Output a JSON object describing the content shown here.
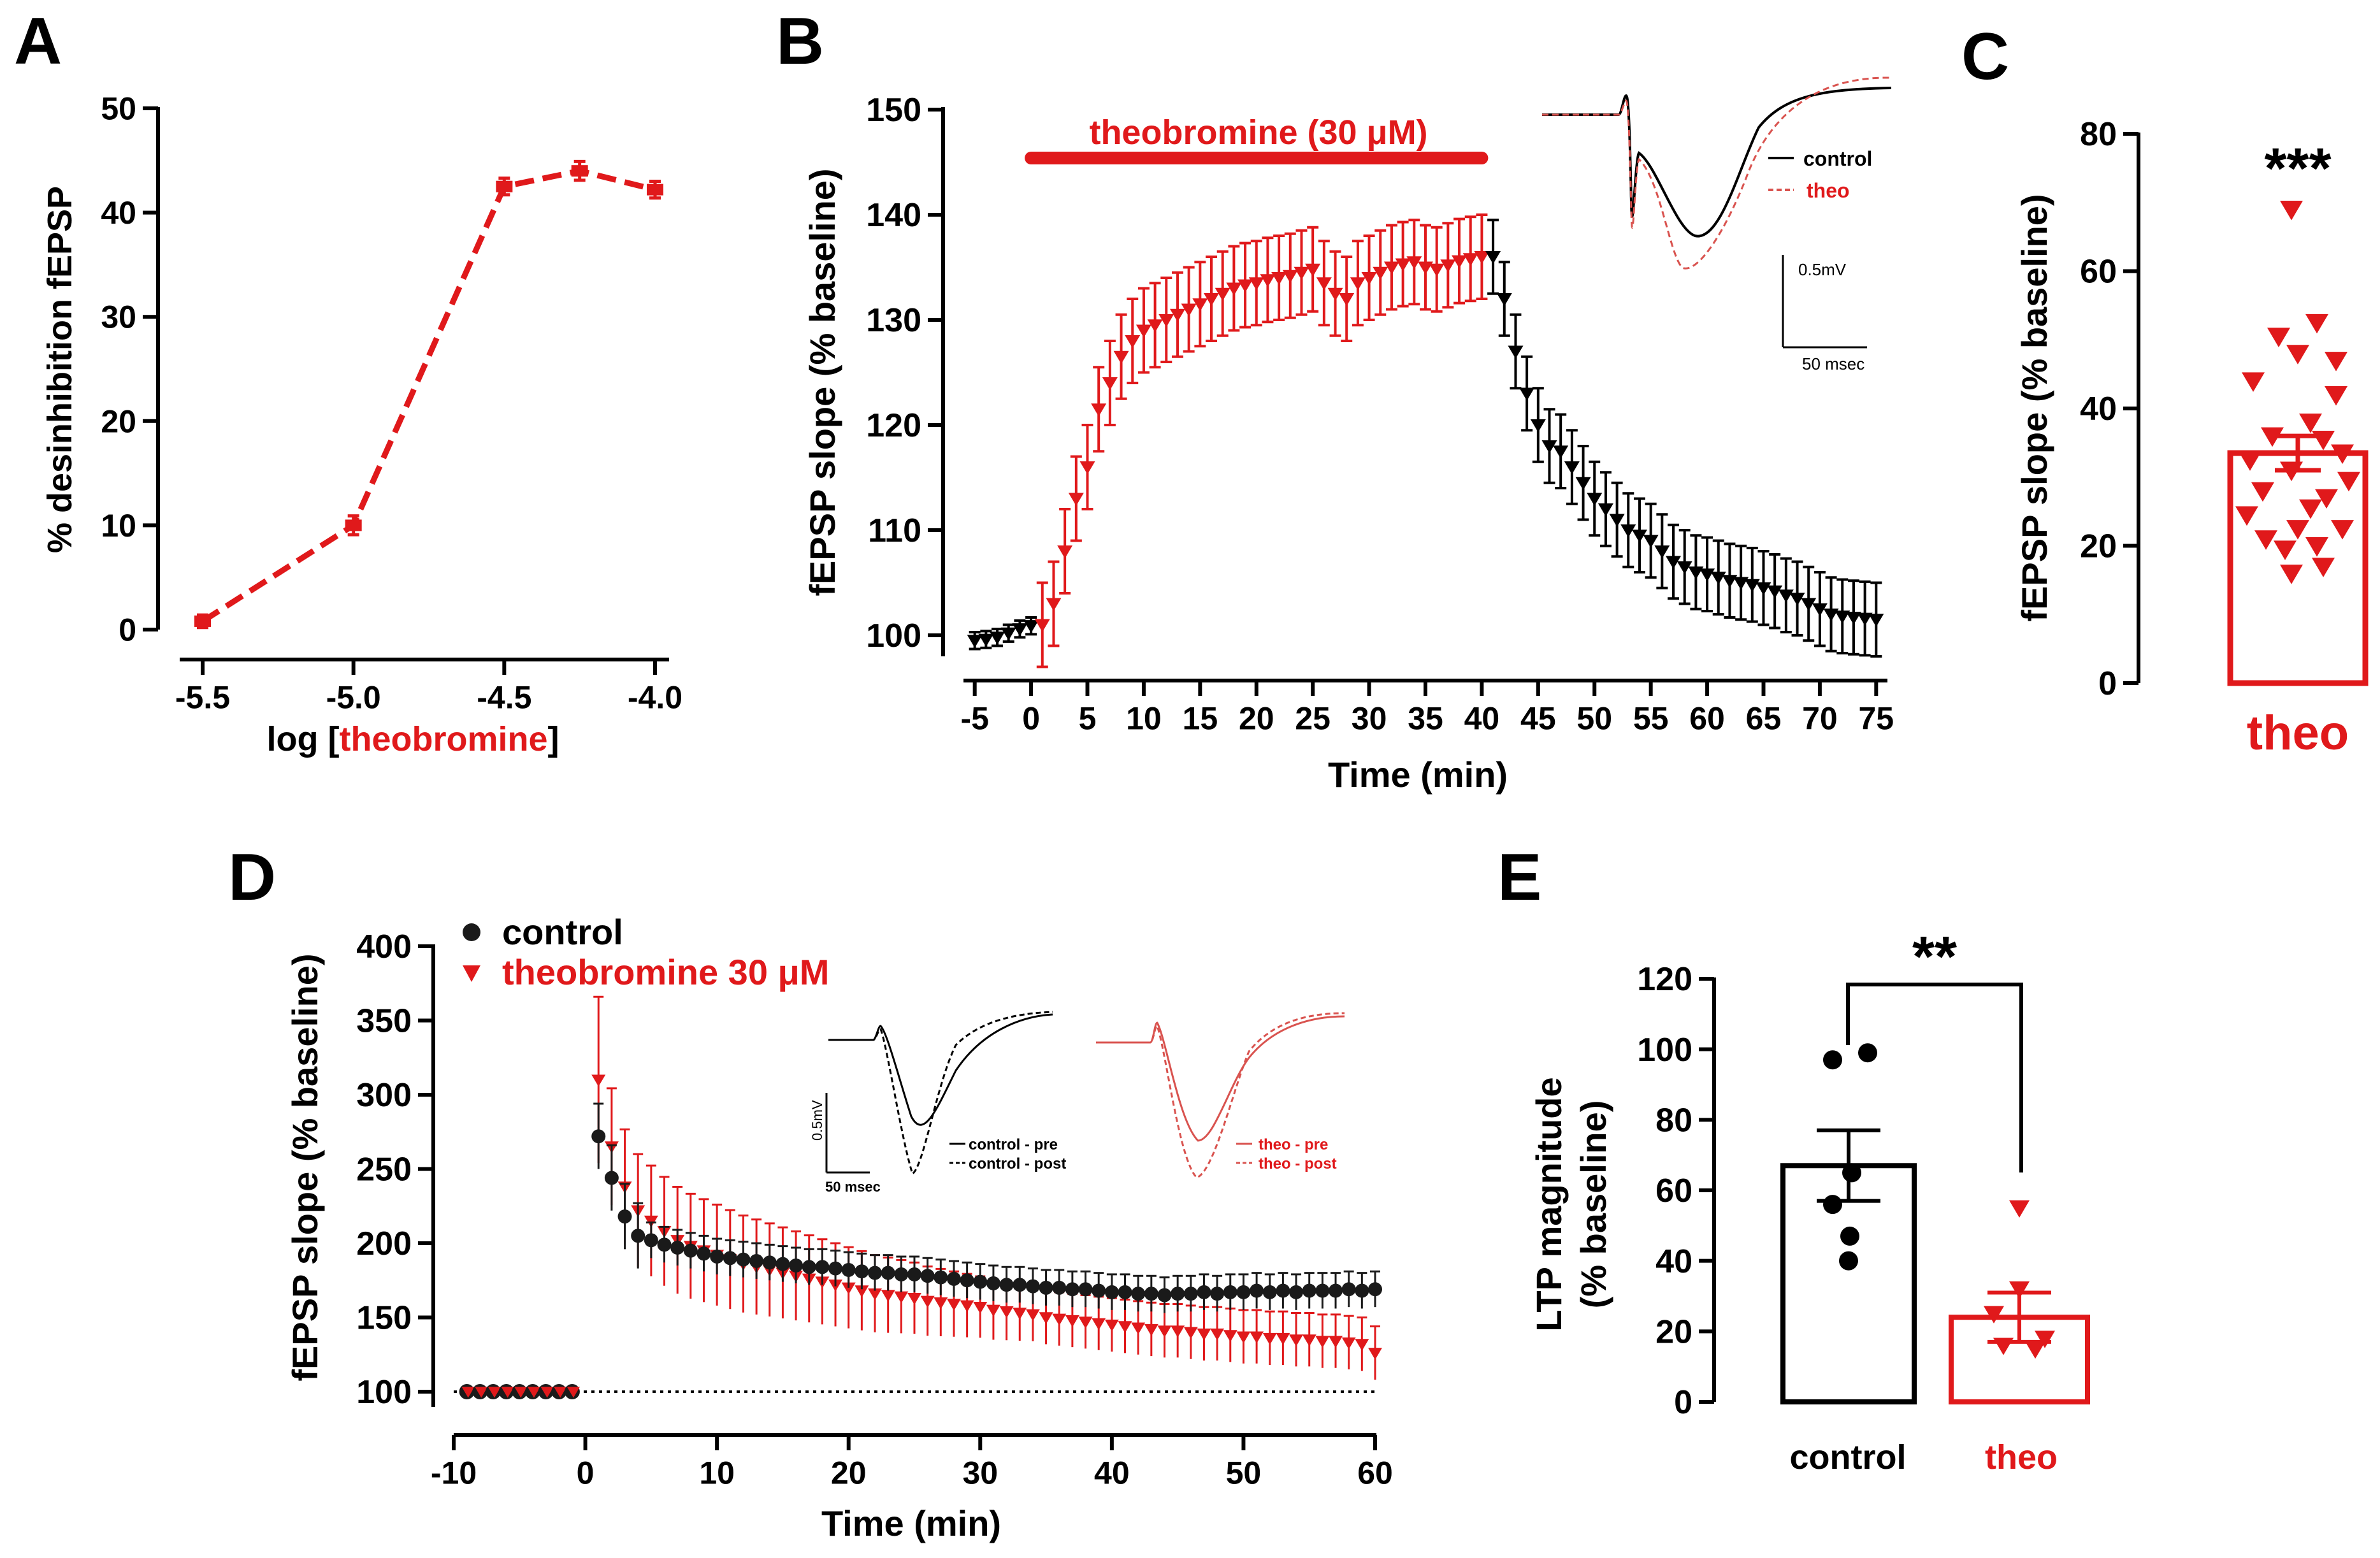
{
  "panels": {
    "A": {
      "letter": "A"
    },
    "B": {
      "letter": "B"
    },
    "C": {
      "letter": "C"
    },
    "D": {
      "letter": "D"
    },
    "E": {
      "letter": "E"
    }
  },
  "colors": {
    "red": "#e0191b",
    "black": "#000000",
    "dark": "#1a1a1a",
    "red_trace": "#d9534f"
  },
  "chart_data": [
    {
      "id": "A",
      "type": "line",
      "title": "",
      "xlabel_prefix": "log [",
      "xlabel_highlight": "theobromine",
      "xlabel_suffix": "]",
      "ylabel": "% desinhibition fEPSP",
      "xlim": [
        -5.5,
        -4.0
      ],
      "ylim": [
        0,
        50
      ],
      "xticks": [
        -5.5,
        -5.0,
        -4.5,
        -4.0
      ],
      "xtick_labels": [
        "-5.5",
        "-5.0",
        "-4.5",
        "-4.0"
      ],
      "yticks": [
        0,
        10,
        20,
        30,
        40,
        50
      ],
      "ytick_labels": [
        "0",
        "10",
        "20",
        "30",
        "40",
        "50"
      ],
      "series": [
        {
          "name": "theobromine",
          "x": [
            -5.5,
            -5.0,
            -4.5,
            -4.25,
            -4.0
          ],
          "y": [
            0.8,
            10,
            42.5,
            44,
            42.2
          ],
          "err": [
            0.6,
            0.9,
            0.8,
            0.9,
            0.8
          ]
        }
      ]
    },
    {
      "id": "B",
      "type": "line",
      "title": "",
      "xlabel": "Time (min)",
      "ylabel": "fEPSP slope (% baseline)",
      "xlim": [
        -6,
        76
      ],
      "ylim": [
        98,
        150
      ],
      "xticks": [
        -5,
        0,
        5,
        10,
        15,
        20,
        25,
        30,
        35,
        40,
        45,
        50,
        55,
        60,
        65,
        70,
        75
      ],
      "xtick_labels": [
        "-5",
        "0",
        "5",
        "10",
        "15",
        "20",
        "25",
        "30",
        "35",
        "40",
        "45",
        "50",
        "55",
        "60",
        "65",
        "70",
        "75"
      ],
      "yticks": [
        100,
        110,
        120,
        130,
        140,
        150
      ],
      "ytick_labels": [
        "100",
        "110",
        "120",
        "130",
        "140",
        "150"
      ],
      "drug_bar": {
        "label": "theobromine (30 μM)",
        "start": 0,
        "end": 40
      },
      "baseline_x": [
        -5,
        -4,
        -3,
        -2,
        -1,
        0
      ],
      "baseline_y": [
        99.5,
        99.6,
        99.8,
        100.2,
        100.6,
        100.9
      ],
      "drug_x": [
        1,
        2,
        3,
        4,
        5,
        6,
        7,
        8,
        9,
        10,
        11,
        12,
        13,
        14,
        15,
        16,
        17,
        18,
        19,
        20,
        21,
        22,
        23,
        24,
        25,
        26,
        27,
        28,
        29,
        30,
        31,
        32,
        33,
        34,
        35,
        36,
        37,
        38,
        39,
        40
      ],
      "drug_y": [
        101,
        103,
        108,
        113,
        116,
        121.5,
        124,
        126.5,
        128,
        129,
        129.5,
        130,
        130.5,
        131,
        131.5,
        132,
        132.5,
        133,
        133.3,
        133.5,
        133.8,
        134,
        134.2,
        134.5,
        134.8,
        133.5,
        132.5,
        132,
        133.5,
        134,
        134.5,
        135,
        135.3,
        135.5,
        135,
        134.8,
        135.2,
        135.6,
        135.8,
        136
      ],
      "washout_x": [
        41,
        42,
        43,
        44,
        45,
        46,
        47,
        48,
        49,
        50,
        51,
        52,
        53,
        54,
        55,
        56,
        57,
        58,
        59,
        60,
        61,
        62,
        63,
        64,
        65,
        66,
        67,
        68,
        69,
        70,
        71,
        72,
        73,
        74,
        75
      ],
      "washout_y": [
        136,
        132,
        127,
        123,
        120,
        118,
        117.5,
        116,
        114.5,
        113,
        112,
        111,
        110,
        109.5,
        109,
        108,
        107,
        106.5,
        106,
        105.8,
        105.5,
        105.2,
        105,
        104.8,
        104.5,
        104.2,
        103.8,
        103.5,
        103,
        102.5,
        102,
        101.8,
        101.7,
        101.6,
        101.5
      ],
      "err_baseline": 0.8,
      "err_drug": 4,
      "err_washout": 3.5,
      "inset": {
        "legend": [
          "control",
          "theo"
        ],
        "scale_v": "0.5mV",
        "scale_h": "50 msec"
      }
    },
    {
      "id": "C",
      "type": "bar",
      "title": "",
      "xlabel": "",
      "ylabel": "fEPSP slope (% baseline)",
      "ylim": [
        0,
        80
      ],
      "yticks": [
        0,
        20,
        40,
        60,
        80
      ],
      "ytick_labels": [
        "0",
        "20",
        "40",
        "60",
        "80"
      ],
      "categories": [
        "theo"
      ],
      "values": [
        33.5
      ],
      "sem": 2.5,
      "points": [
        69,
        52.5,
        50.5,
        48,
        47,
        44,
        42,
        38,
        36,
        35.5,
        33.5,
        32.5,
        31,
        29.5,
        28,
        27,
        25.5,
        24.5,
        22.5,
        22.5,
        21,
        20,
        19.5,
        17,
        16
      ],
      "significance": "***"
    },
    {
      "id": "D",
      "type": "line",
      "title": "",
      "xlabel": "Time (min)",
      "ylabel": "fEPSP slope (% baseline)",
      "xlim": [
        -10,
        60
      ],
      "ylim": [
        88,
        400
      ],
      "xticks": [
        -10,
        0,
        10,
        20,
        30,
        40,
        50,
        60
      ],
      "xtick_labels": [
        "-10",
        "0",
        "10",
        "20",
        "30",
        "40",
        "50",
        "60"
      ],
      "yticks": [
        100,
        150,
        200,
        250,
        300,
        350,
        400
      ],
      "ytick_labels": [
        "100",
        "150",
        "200",
        "250",
        "300",
        "350",
        "400"
      ],
      "reference_line": 100,
      "legend": [
        "control",
        "theobromine 30 μM"
      ],
      "series": [
        {
          "name": "control",
          "x_start": -9,
          "x_end": 60,
          "step": 1
        },
        {
          "name": "theobromine 30 μM",
          "x_start": -9,
          "x_end": 60,
          "step": 1
        }
      ],
      "control_post": [
        272,
        244,
        218,
        205,
        202,
        199,
        197,
        195,
        193,
        191,
        190,
        189,
        188,
        187,
        186,
        185,
        184,
        184,
        183,
        182,
        181,
        180,
        180,
        179,
        179,
        178,
        177,
        176,
        175,
        174,
        173,
        172,
        172,
        171,
        170,
        170,
        169,
        169,
        168,
        167,
        167,
        166,
        166,
        165,
        166,
        166,
        167,
        166,
        167,
        167,
        168,
        167,
        168,
        167,
        168,
        168,
        168,
        169,
        168,
        169
      ],
      "theo_post": [
        310,
        265,
        238,
        222,
        215,
        208,
        202,
        198,
        195,
        192,
        189,
        186,
        184,
        182,
        180,
        178,
        176,
        174,
        172,
        170,
        168,
        166,
        165,
        164,
        163,
        161,
        160,
        159,
        158,
        157,
        155,
        154,
        153,
        152,
        150,
        149,
        148,
        147,
        146,
        145,
        144,
        143,
        142,
        141,
        141,
        140,
        139,
        139,
        138,
        137,
        137,
        136,
        136,
        135,
        135,
        134,
        134,
        133,
        132,
        126
      ],
      "control_err": 12,
      "theo_err": 40,
      "inset": {
        "control_legend": [
          "control - pre",
          "control - post"
        ],
        "theo_legend": [
          "theo - pre",
          "theo - post"
        ],
        "scale_v": "0.5mV",
        "scale_h": "50 msec"
      }
    },
    {
      "id": "E",
      "type": "bar",
      "title": "",
      "xlabel": "",
      "ylabel_line1": "LTP magnitude",
      "ylabel_line2": "(% baseline)",
      "ylim": [
        0,
        120
      ],
      "yticks": [
        0,
        20,
        40,
        60,
        80,
        100,
        120
      ],
      "ytick_labels": [
        "0",
        "20",
        "40",
        "60",
        "80",
        "100",
        "120"
      ],
      "categories": [
        "control",
        "theo"
      ],
      "values": [
        67,
        24
      ],
      "sem": [
        10,
        7
      ],
      "points": [
        [
          99,
          97,
          65,
          56,
          47,
          40
        ],
        [
          55,
          32,
          25,
          18,
          16,
          15
        ]
      ],
      "significance": "**"
    }
  ]
}
